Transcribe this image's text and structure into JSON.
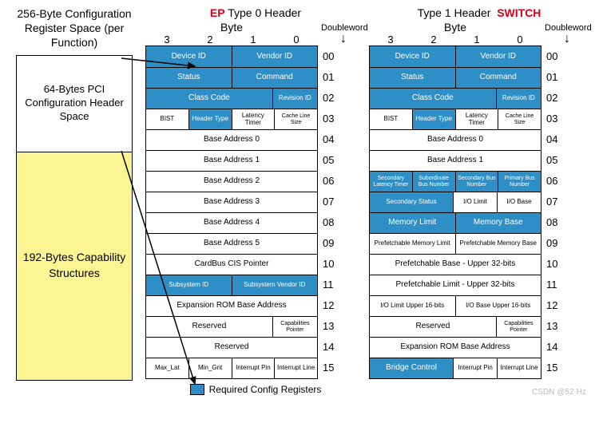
{
  "colors": {
    "req_bg": "#2d8fc6",
    "req_fg": "#ffffff",
    "cap_bg": "#fcf594",
    "accent": "#d6001c"
  },
  "left": {
    "title": "256-Byte Configuration Register Space (per Function)",
    "top_label": "64-Bytes PCI Configuration Header Space",
    "bot_label": "192-Bytes Capability Structures"
  },
  "shared": {
    "byte": "Byte",
    "doubleword": "Doubleword",
    "byte_nums": [
      "3",
      "2",
      "1",
      "0"
    ],
    "dw": [
      "00",
      "01",
      "02",
      "03",
      "04",
      "05",
      "06",
      "07",
      "08",
      "09",
      "10",
      "11",
      "12",
      "13",
      "14",
      "15"
    ],
    "legend": "Required Config Registers"
  },
  "t0": {
    "ep": "EP",
    "title": "Type 0 Header",
    "rows": [
      [
        [
          "Device ID",
          "c2 req mid"
        ],
        [
          "Vendor ID",
          "c2 req mid"
        ]
      ],
      [
        [
          "Status",
          "c2 req mid"
        ],
        [
          "Command",
          "c2 req mid"
        ]
      ],
      [
        [
          "Class Code",
          "c3 req mid"
        ],
        [
          "Revision ID",
          "c1 req small"
        ]
      ],
      [
        [
          "BIST",
          "c1 small"
        ],
        [
          "Header Type",
          "c1 req small"
        ],
        [
          "Latency Timer",
          "c1 small"
        ],
        [
          "Cache Line Size",
          "c1 tiny"
        ]
      ],
      [
        [
          "Base Address 0",
          "c4 mid"
        ]
      ],
      [
        [
          "Base Address 1",
          "c4 mid"
        ]
      ],
      [
        [
          "Base Address 2",
          "c4 mid"
        ]
      ],
      [
        [
          "Base Address 3",
          "c4 mid"
        ]
      ],
      [
        [
          "Base Address 4",
          "c4 mid"
        ]
      ],
      [
        [
          "Base Address 5",
          "c4 mid"
        ]
      ],
      [
        [
          "CardBus CIS Pointer",
          "c4 mid"
        ]
      ],
      [
        [
          "Subsystem ID",
          "c2 req small"
        ],
        [
          "Subsystem Vendor ID",
          "c2 req small"
        ]
      ],
      [
        [
          "Expansion ROM Base Address",
          "c4 mid"
        ]
      ],
      [
        [
          "Reserved",
          "c3 mid"
        ],
        [
          "Capabilities Pointer",
          "c1 tiny"
        ]
      ],
      [
        [
          "Reserved",
          "c4 mid"
        ]
      ],
      [
        [
          "Max_Lat",
          "c1 small"
        ],
        [
          "Min_Gnt",
          "c1 small"
        ],
        [
          "Interrupt Pin",
          "c1 small"
        ],
        [
          "Interrupt Line",
          "c1 small"
        ]
      ]
    ]
  },
  "t1": {
    "sw": "SWITCH",
    "title": "Type 1 Header",
    "rows": [
      [
        [
          "Device ID",
          "c2 req mid"
        ],
        [
          "Vendor ID",
          "c2 req mid"
        ]
      ],
      [
        [
          "Status",
          "c2 req mid"
        ],
        [
          "Command",
          "c2 req mid"
        ]
      ],
      [
        [
          "Class Code",
          "c3 req mid"
        ],
        [
          "Revision ID",
          "c1 req small"
        ]
      ],
      [
        [
          "BIST",
          "c1 small"
        ],
        [
          "Header Type",
          "c1 req small"
        ],
        [
          "Latency Timer",
          "c1 small"
        ],
        [
          "Cache Line Size",
          "c1 tiny"
        ]
      ],
      [
        [
          "Base Address 0",
          "c4 mid"
        ]
      ],
      [
        [
          "Base Address 1",
          "c4 mid"
        ]
      ],
      [
        [
          "Secondary Latency Timer",
          "c1 req tiny"
        ],
        [
          "Subordinate Bus Number",
          "c1 req tiny"
        ],
        [
          "Secondary Bus Number",
          "c1 req tiny"
        ],
        [
          "Primary Bus Number",
          "c1 req tiny"
        ]
      ],
      [
        [
          "Secondary Status",
          "c2 req small"
        ],
        [
          "I/O Limit",
          "c1 small"
        ],
        [
          "I/O Base",
          "c1 small"
        ]
      ],
      [
        [
          "Memory Limit",
          "c2 req mid"
        ],
        [
          "Memory Base",
          "c2 req mid"
        ]
      ],
      [
        [
          "Prefetchable Memory Limit",
          "c2 small"
        ],
        [
          "Prefetchable Memory Base",
          "c2 small"
        ]
      ],
      [
        [
          "Prefetchable Base - Upper 32-bits",
          "c4 mid"
        ]
      ],
      [
        [
          "Prefetchable Limit - Upper 32-bits",
          "c4 mid"
        ]
      ],
      [
        [
          "I/O Limit Upper 16-bits",
          "c2 small"
        ],
        [
          "I/O Base Upper 16-bits",
          "c2 small"
        ]
      ],
      [
        [
          "Reserved",
          "c3 mid"
        ],
        [
          "Capabilities Pointer",
          "c1 tiny"
        ]
      ],
      [
        [
          "Expansion ROM Base Address",
          "c4 mid"
        ]
      ],
      [
        [
          "Bridge Control",
          "c2 req mid"
        ],
        [
          "Interrupt Pin",
          "c1 small"
        ],
        [
          "Interrupt Line",
          "c1 small"
        ]
      ]
    ]
  },
  "watermark": "CSDN @52·Hz"
}
